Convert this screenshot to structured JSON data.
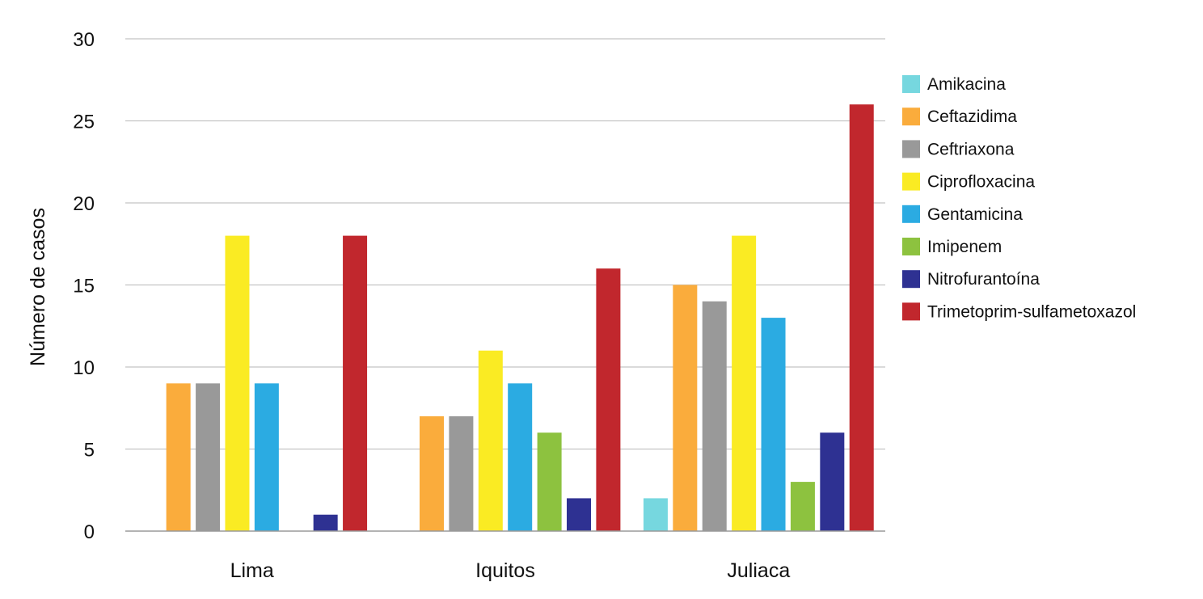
{
  "chart_data": {
    "type": "bar",
    "title": "",
    "xlabel": "",
    "ylabel": "Número de casos",
    "ylim": [
      0,
      30
    ],
    "yticks": [
      0,
      5,
      10,
      15,
      20,
      25,
      30
    ],
    "grid": true,
    "legend_position": "right",
    "categories": [
      "Lima",
      "Iquitos",
      "Juliaca"
    ],
    "series": [
      {
        "name": "Amikacina",
        "color": "#76D7DF",
        "values": [
          0,
          0,
          2
        ]
      },
      {
        "name": "Ceftazidima",
        "color": "#FAAC3C",
        "values": [
          9,
          7,
          15
        ]
      },
      {
        "name": "Ceftriaxona",
        "color": "#999999",
        "values": [
          9,
          7,
          14
        ]
      },
      {
        "name": "Ciprofloxacina",
        "color": "#FAEB23",
        "values": [
          18,
          11,
          18
        ]
      },
      {
        "name": "Gentamicina",
        "color": "#2BABE2",
        "values": [
          9,
          9,
          13
        ]
      },
      {
        "name": "Imipenem",
        "color": "#8DC23F",
        "values": [
          0,
          6,
          3
        ]
      },
      {
        "name": "Nitrofurantoína",
        "color": "#2E3192",
        "values": [
          1,
          2,
          6
        ]
      },
      {
        "name": "Trimetoprim-sulfametoxazol",
        "color": "#C1272D",
        "values": [
          18,
          16,
          26
        ]
      }
    ]
  }
}
